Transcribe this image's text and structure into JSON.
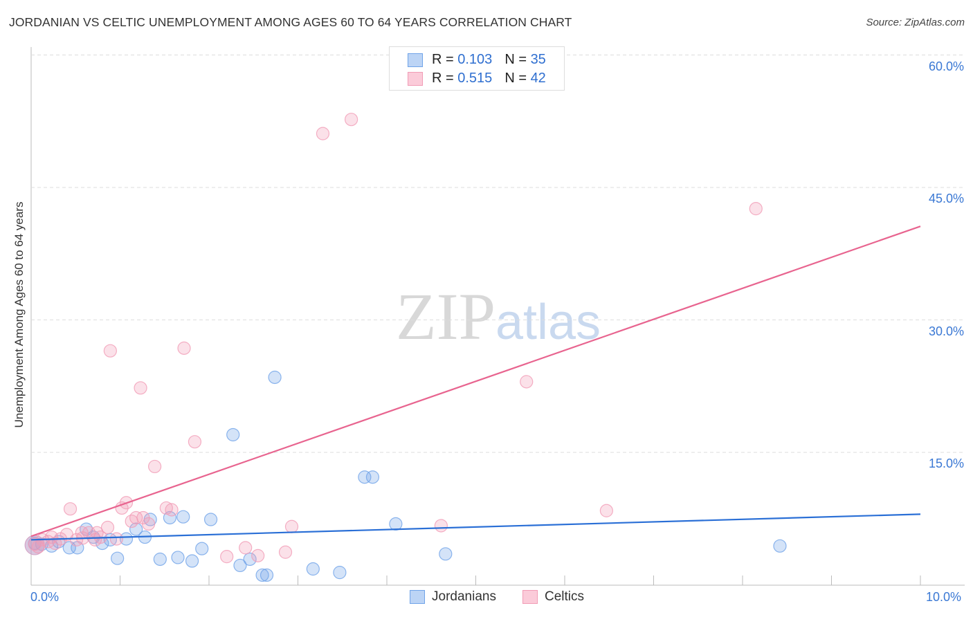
{
  "chart_data": {
    "type": "scatter",
    "title": "JORDANIAN VS CELTIC UNEMPLOYMENT AMONG AGES 60 TO 64 YEARS CORRELATION CHART",
    "source": "Source: ZipAtlas.com",
    "xlabel": "",
    "ylabel": "Unemployment Among Ages 60 to 64 years",
    "xlim": [
      0,
      10
    ],
    "ylim": [
      0,
      60
    ],
    "x_tick_labels": [
      "0.0%",
      "10.0%"
    ],
    "y_tick_labels": [
      "15.0%",
      "30.0%",
      "45.0%",
      "60.0%"
    ],
    "y_ticks": [
      15,
      30,
      45,
      60
    ],
    "watermark": "ZIPatlas",
    "series": [
      {
        "name": "Jordanians",
        "color": "#6fa3e8",
        "line_color": "#2a6fd6",
        "R": "0.103",
        "N": "35",
        "trend": [
          [
            0,
            5.1
          ],
          [
            10,
            8.0
          ]
        ],
        "points": [
          [
            0.04,
            4.7
          ],
          [
            0.12,
            4.6
          ],
          [
            0.23,
            4.4
          ],
          [
            0.31,
            4.9
          ],
          [
            0.43,
            4.2
          ],
          [
            0.52,
            4.2
          ],
          [
            0.62,
            6.3
          ],
          [
            0.7,
            5.4
          ],
          [
            0.8,
            4.7
          ],
          [
            0.89,
            5.1
          ],
          [
            0.97,
            3.0
          ],
          [
            1.07,
            5.2
          ],
          [
            1.18,
            6.3
          ],
          [
            1.28,
            5.4
          ],
          [
            1.34,
            7.4
          ],
          [
            1.45,
            2.9
          ],
          [
            1.56,
            7.6
          ],
          [
            1.65,
            3.1
          ],
          [
            1.71,
            7.7
          ],
          [
            1.81,
            2.7
          ],
          [
            1.92,
            4.1
          ],
          [
            2.02,
            7.4
          ],
          [
            2.27,
            17.0
          ],
          [
            2.35,
            2.2
          ],
          [
            2.46,
            2.9
          ],
          [
            2.6,
            1.1
          ],
          [
            2.65,
            1.1
          ],
          [
            2.74,
            23.5
          ],
          [
            3.17,
            1.8
          ],
          [
            3.47,
            1.4
          ],
          [
            3.75,
            12.2
          ],
          [
            3.84,
            12.2
          ],
          [
            4.1,
            6.9
          ],
          [
            4.66,
            3.5
          ],
          [
            8.42,
            4.4
          ]
        ]
      },
      {
        "name": "Celtics",
        "color": "#f19bb5",
        "line_color": "#e8648f",
        "R": "0.515",
        "N": "42",
        "trend": [
          [
            0,
            5.5
          ],
          [
            10,
            40.6
          ]
        ],
        "points": [
          [
            0.04,
            4.6
          ],
          [
            0.13,
            5.1
          ],
          [
            0.23,
            5.4
          ],
          [
            0.33,
            5.2
          ],
          [
            0.4,
            5.7
          ],
          [
            0.44,
            8.6
          ],
          [
            0.51,
            5.1
          ],
          [
            0.57,
            5.9
          ],
          [
            0.65,
            5.9
          ],
          [
            0.72,
            5.1
          ],
          [
            0.78,
            5.4
          ],
          [
            0.86,
            6.5
          ],
          [
            0.89,
            26.5
          ],
          [
            0.96,
            5.2
          ],
          [
            1.02,
            8.7
          ],
          [
            1.07,
            9.3
          ],
          [
            1.13,
            7.2
          ],
          [
            1.18,
            7.6
          ],
          [
            1.23,
            22.3
          ],
          [
            1.26,
            7.6
          ],
          [
            1.32,
            6.9
          ],
          [
            1.39,
            13.4
          ],
          [
            1.52,
            8.7
          ],
          [
            1.58,
            8.5
          ],
          [
            1.72,
            26.8
          ],
          [
            1.84,
            16.2
          ],
          [
            2.2,
            3.2
          ],
          [
            2.41,
            4.2
          ],
          [
            2.55,
            3.3
          ],
          [
            2.86,
            3.7
          ],
          [
            2.93,
            6.6
          ],
          [
            3.28,
            51.1
          ],
          [
            3.6,
            52.7
          ],
          [
            4.61,
            6.7
          ],
          [
            5.57,
            23.0
          ],
          [
            6.47,
            8.4
          ],
          [
            8.15,
            42.6
          ],
          [
            0.08,
            4.3
          ],
          [
            0.19,
            4.9
          ],
          [
            0.27,
            4.7
          ],
          [
            0.74,
            5.9
          ],
          [
            0.58,
            5.3
          ]
        ]
      }
    ]
  },
  "legend": {
    "r_label": "R = ",
    "n_label": "N = "
  }
}
